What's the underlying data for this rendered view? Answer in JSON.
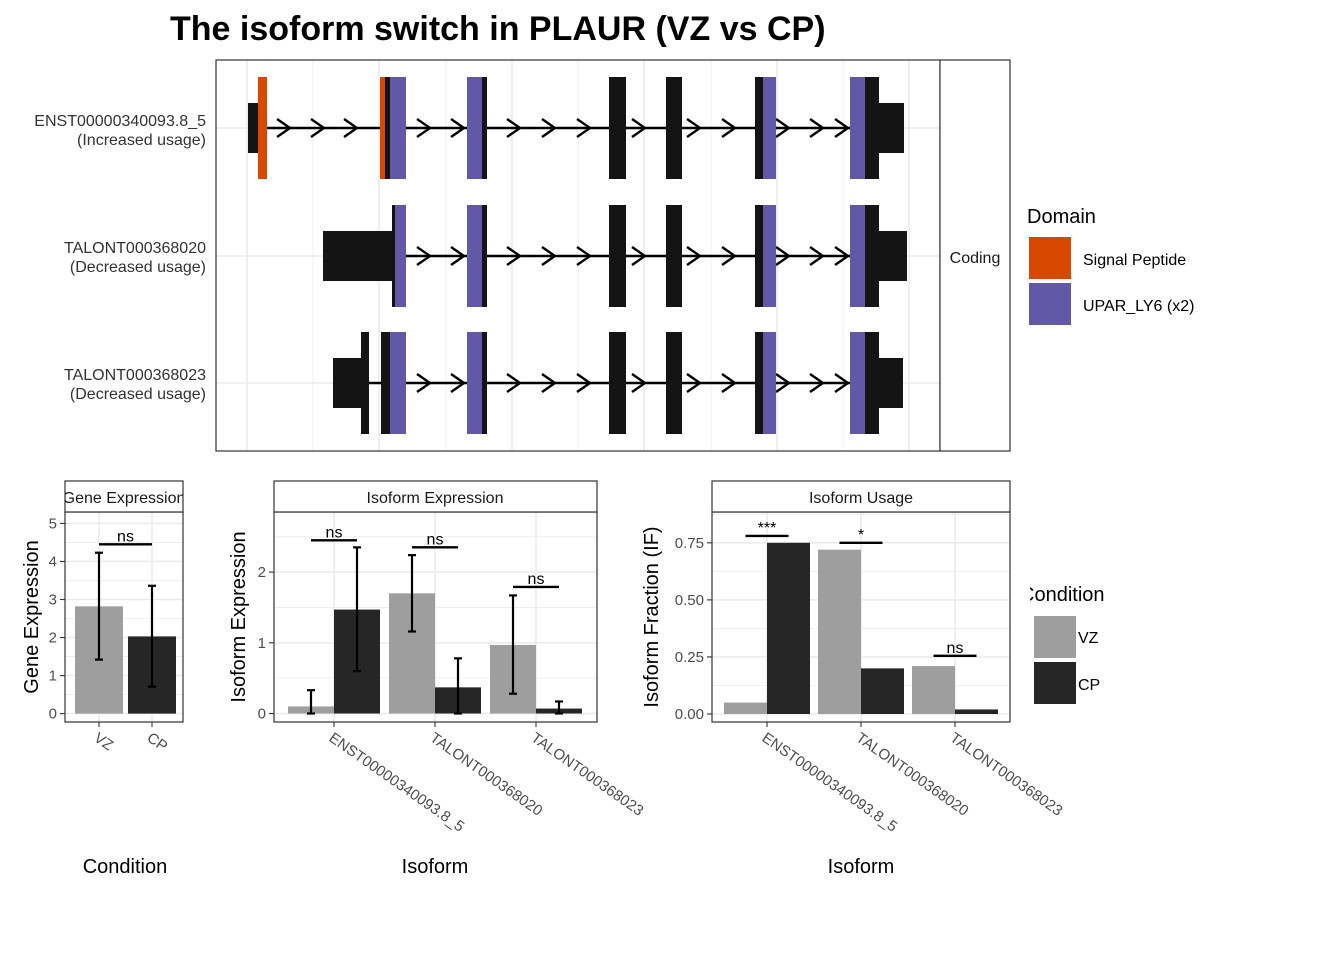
{
  "title": "The isoform switch in PLAUR (VZ vs CP)",
  "colors": {
    "signal_peptide": "#D94801",
    "upar": "#6159A7",
    "exon": "#141414",
    "vz": "#9E9E9E",
    "cp": "#262626",
    "grid": "#EBEBEB"
  },
  "structure": {
    "facet_label": "Coding",
    "transcripts": [
      {
        "id": "ENST00000340093.8_5",
        "usage": "(Increased usage)"
      },
      {
        "id": "TALONT000368020",
        "usage": "(Decreased usage)"
      },
      {
        "id": "TALONT000368023",
        "usage": "(Decreased usage)"
      }
    ]
  },
  "domain_legend": {
    "title": "Domain",
    "items": [
      {
        "label": "Signal Peptide",
        "color": "#D94801"
      },
      {
        "label": "UPAR_LY6 (x2)",
        "color": "#6159A7"
      }
    ]
  },
  "condition_legend": {
    "title": "Condition",
    "items": [
      {
        "label": "VZ",
        "color": "#9E9E9E"
      },
      {
        "label": "CP",
        "color": "#262626"
      }
    ]
  },
  "chart_data": [
    {
      "type": "bar",
      "strip": "Gene Expression",
      "xlabel": "Condition",
      "ylabel": "Gene Expression",
      "categories": [
        "VZ",
        "CP"
      ],
      "values": [
        2.82,
        2.03
      ],
      "err_low": [
        1.42,
        0.71
      ],
      "err_high": [
        4.23,
        3.36
      ],
      "ylim": [
        -0.22,
        5.3
      ],
      "yticks": [
        0,
        1,
        2,
        3,
        4,
        5
      ],
      "annotations": [
        {
          "label": "ns",
          "ref": [
            0,
            1
          ],
          "y": 4.45
        }
      ]
    },
    {
      "type": "bar",
      "strip": "Isoform Expression",
      "xlabel": "Isoform",
      "ylabel": "Isoform Expression",
      "categories": [
        "ENST00000340093.8_5",
        "TALONT000368020",
        "TALONT000368023"
      ],
      "series": [
        {
          "name": "VZ",
          "values": [
            0.1,
            1.7,
            0.97
          ],
          "err_low": [
            0.0,
            1.16,
            0.28
          ],
          "err_high": [
            0.33,
            2.24,
            1.67
          ]
        },
        {
          "name": "CP",
          "values": [
            1.47,
            0.37,
            0.07
          ],
          "err_low": [
            0.6,
            0.0,
            0.0
          ],
          "err_high": [
            2.35,
            0.78,
            0.17
          ]
        }
      ],
      "ylim": [
        -0.12,
        2.85
      ],
      "yticks": [
        0,
        1,
        2
      ],
      "annotations": [
        {
          "label": "ns",
          "category": 0,
          "y": 2.45
        },
        {
          "label": "ns",
          "category": 1,
          "y": 2.35
        },
        {
          "label": "ns",
          "category": 2,
          "y": 1.79
        }
      ]
    },
    {
      "type": "bar",
      "strip": "Isoform Usage",
      "xlabel": "Isoform",
      "ylabel": "Isoform Fraction (IF)",
      "categories": [
        "ENST00000340093.8_5",
        "TALONT000368020",
        "TALONT000368023"
      ],
      "series": [
        {
          "name": "VZ",
          "values": [
            0.05,
            0.72,
            0.21
          ]
        },
        {
          "name": "CP",
          "values": [
            0.75,
            0.2,
            0.02
          ]
        }
      ],
      "ylim": [
        -0.035,
        0.885
      ],
      "yticks": [
        0,
        0.25,
        0.5,
        0.75
      ],
      "ytick_labels": [
        "0.00",
        "0.25",
        "0.50",
        "0.75"
      ],
      "annotations": [
        {
          "label": "***",
          "category": 0,
          "y": 0.78
        },
        {
          "label": "*",
          "category": 1,
          "y": 0.75
        },
        {
          "label": "ns",
          "category": 2,
          "y": 0.255
        }
      ]
    }
  ]
}
